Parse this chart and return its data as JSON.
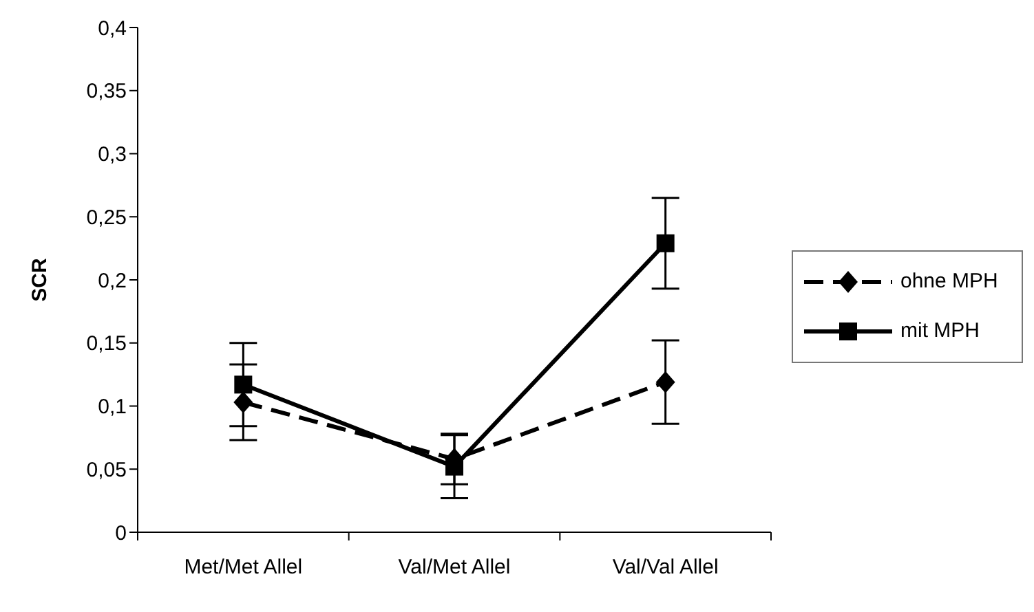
{
  "chart_data": {
    "type": "line",
    "ylabel": "SCR",
    "categories": [
      "Met/Met Allel",
      "Val/Met Allel",
      "Val/Val Allel"
    ],
    "series": [
      {
        "name": "ohne MPH",
        "color": "#000000",
        "values": [
          0.103,
          0.058,
          0.119
        ],
        "errors": [
          0.03,
          0.02,
          0.033
        ],
        "marker": "diamond",
        "line_style": "dashed"
      },
      {
        "name": "mit MPH",
        "color": "#000000",
        "values": [
          0.117,
          0.052,
          0.229
        ],
        "errors": [
          0.033,
          0.025,
          0.036
        ],
        "marker": "square",
        "line_style": "solid"
      }
    ],
    "ylim": [
      0,
      0.4
    ],
    "yticks": [
      {
        "value": 0,
        "label": "0"
      },
      {
        "value": 0.05,
        "label": "0,05"
      },
      {
        "value": 0.1,
        "label": "0,1"
      },
      {
        "value": 0.15,
        "label": "0,15"
      },
      {
        "value": 0.2,
        "label": "0,2"
      },
      {
        "value": 0.25,
        "label": "0,25"
      },
      {
        "value": 0.3,
        "label": "0,3"
      },
      {
        "value": 0.35,
        "label": "0,35"
      },
      {
        "value": 0.4,
        "label": "0,4"
      }
    ],
    "grid": false,
    "legend": "right"
  }
}
